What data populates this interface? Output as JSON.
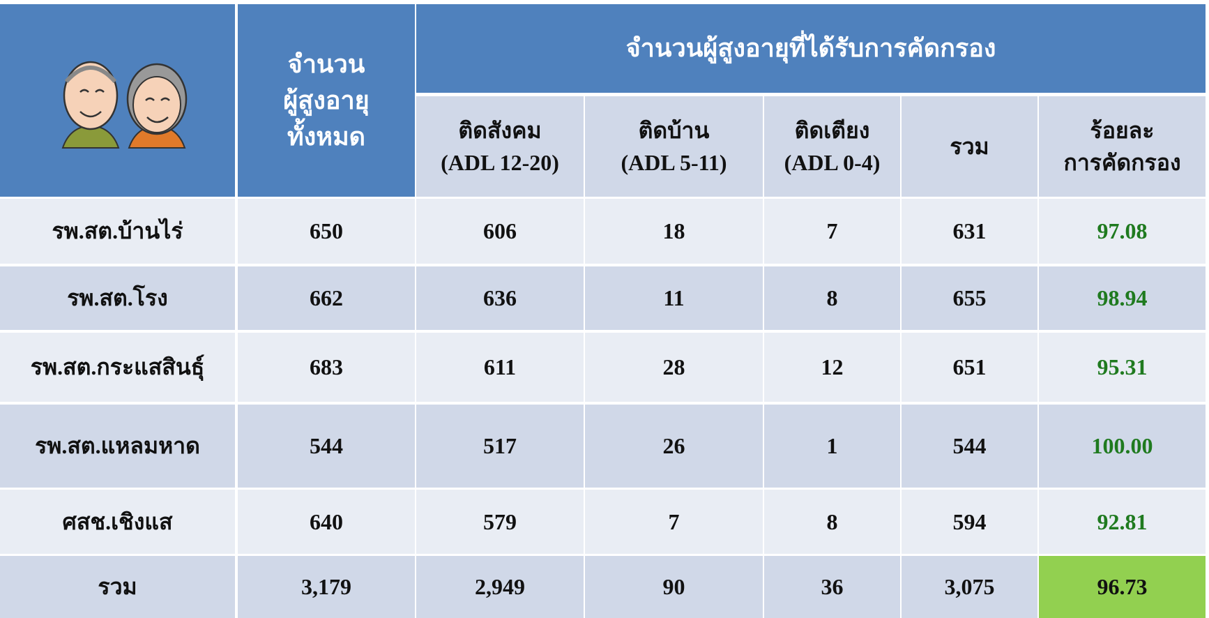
{
  "table": {
    "header": {
      "total": "จำนวน\nผู้สูงอายุ\nทั้งหมด",
      "group": "จำนวนผู้สูงอายุที่ได้รับการคัดกรอง",
      "columns": [
        "ติดสังคม\n(ADL 12-20)",
        "ติดบ้าน\n(ADL 5-11)",
        "ติดเตียง\n(ADL 0-4)",
        "รวม",
        "ร้อยละ\nการคัดกรอง"
      ]
    },
    "rows": [
      [
        "รพ.สต.บ้านไร่",
        "650",
        "606",
        "18",
        "7",
        "631",
        "97.08"
      ],
      [
        "รพ.สต.โรง",
        "662",
        "636",
        "11",
        "8",
        "655",
        "98.94"
      ],
      [
        "รพ.สต.กระแสสินธุ์",
        "683",
        "611",
        "28",
        "12",
        "651",
        "95.31"
      ],
      [
        "รพ.สต.แหลมหาด",
        "544",
        "517",
        "26",
        "1",
        "544",
        "100.00"
      ],
      [
        "ศสช.เชิงแส",
        "640",
        "579",
        "7",
        "8",
        "594",
        "92.81"
      ],
      [
        "รวม",
        "3,179",
        "2,949",
        "90",
        "36",
        "3,075",
        "96.73"
      ]
    ]
  }
}
